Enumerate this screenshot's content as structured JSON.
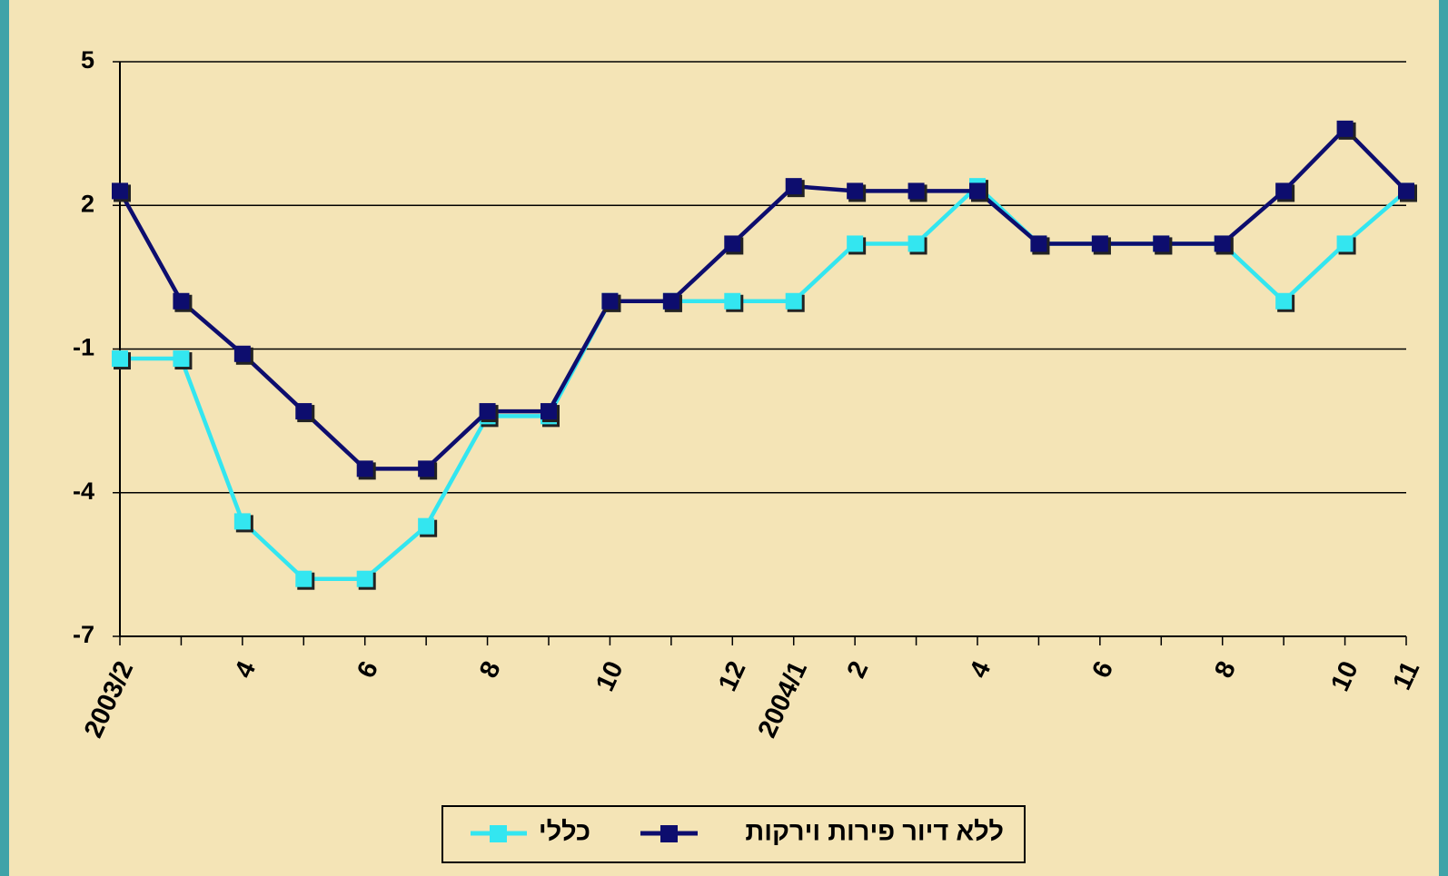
{
  "chart_data": {
    "type": "line",
    "categories": [
      "2003/2",
      null,
      "4",
      null,
      "6",
      null,
      "8",
      null,
      "10",
      null,
      "12",
      "2004/1",
      "2",
      null,
      "4",
      null,
      "6",
      null,
      "8",
      null,
      "10",
      "11"
    ],
    "series": [
      {
        "name": "ללא דיור פירות וירקות",
        "color": "#0d0d6e",
        "values": [
          2.3,
          0.0,
          -1.1,
          -2.3,
          -3.5,
          -3.5,
          -2.3,
          -2.3,
          0.0,
          0.0,
          1.2,
          2.4,
          2.3,
          2.3,
          2.3,
          1.2,
          1.2,
          1.2,
          1.2,
          2.3,
          3.6,
          2.3
        ]
      },
      {
        "name": "כללי",
        "color": "#33e6f0",
        "values": [
          -1.2,
          -1.2,
          -4.6,
          -5.8,
          -5.8,
          -4.7,
          -2.4,
          -2.4,
          0.0,
          0.0,
          0.0,
          0.0,
          1.2,
          1.2,
          2.4,
          1.2,
          1.2,
          1.2,
          1.2,
          0.0,
          1.2,
          2.3
        ]
      }
    ],
    "ylim": [
      -7,
      5
    ],
    "yticks": [
      -7,
      -4,
      -1,
      2,
      5
    ],
    "grid": true
  }
}
